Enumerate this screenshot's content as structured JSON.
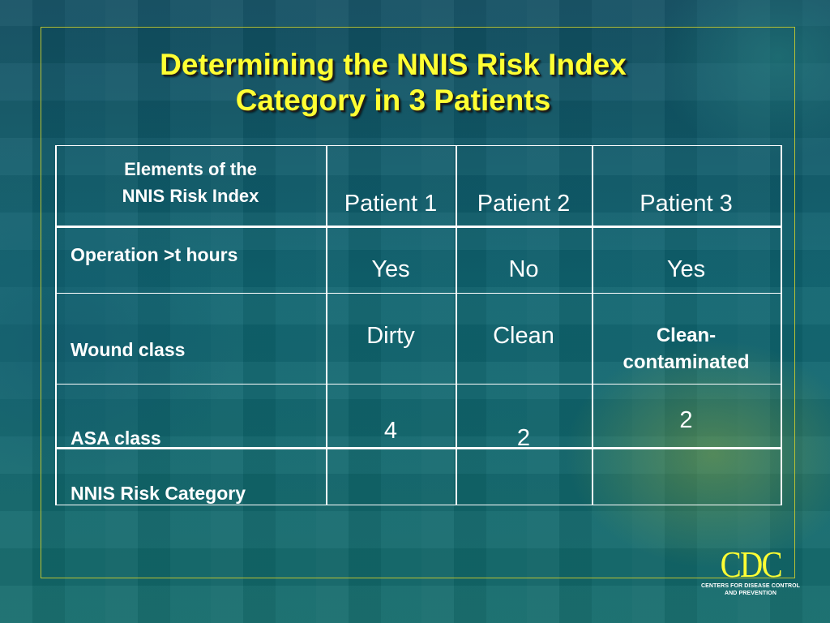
{
  "slide": {
    "title_line1": "Determining the NNIS Risk Index",
    "title_line2": "Category in 3 Patients"
  },
  "table": {
    "header": {
      "elements_line1": "Elements of the",
      "elements_line2": "NNIS Risk Index",
      "patient1": "Patient 1",
      "patient2": "Patient 2",
      "patient3": "Patient 3"
    },
    "rows": [
      {
        "label": "Operation >t hours",
        "p1": "Yes",
        "p2": "No",
        "p3": "Yes"
      },
      {
        "label": "Wound class",
        "p1": "Dirty",
        "p2": "Clean",
        "p3_line1": "Clean-",
        "p3_line2": "contaminated"
      },
      {
        "label": "ASA class",
        "p1": "4",
        "p2": "2",
        "p3": "2"
      },
      {
        "label": "NNIS Risk Category",
        "p1": "",
        "p2": "",
        "p3": ""
      }
    ]
  },
  "logo": {
    "text": "CDC",
    "sub_line1": "CENTERS FOR DISEASE CONTROL",
    "sub_line2": "AND PREVENTION"
  },
  "colors": {
    "title": "#ffff33",
    "frame": "#b9c234",
    "text": "#ffffff",
    "background": "#0f5a6a"
  }
}
